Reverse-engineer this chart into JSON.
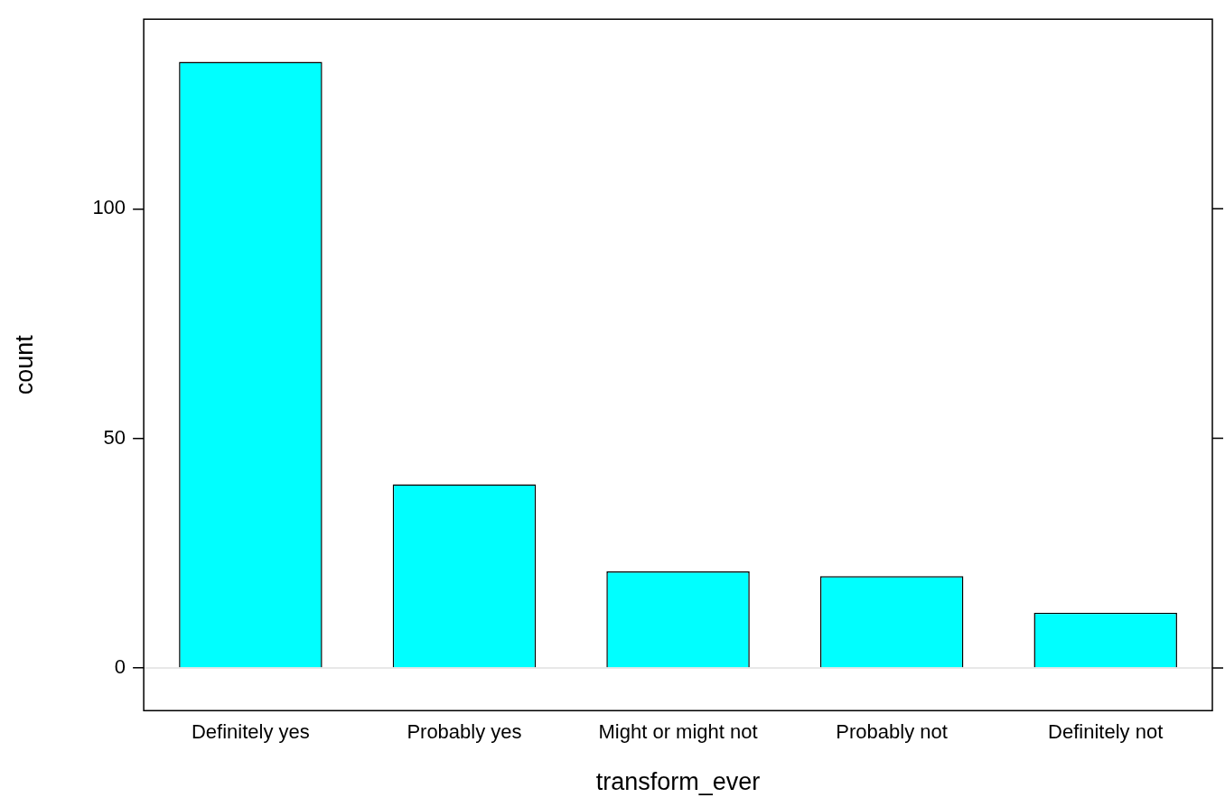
{
  "chart_data": {
    "type": "bar",
    "xlabel": "transform_ever",
    "ylabel": "count",
    "categories": [
      "Definitely yes",
      "Probably yes",
      "Might or might not",
      "Probably not",
      "Definitely not"
    ],
    "values": [
      132,
      40,
      21,
      20,
      12
    ],
    "color": "#00ffff",
    "ylim": [
      -9.3,
      141.3
    ],
    "yticks": [
      0,
      50,
      100
    ],
    "grid": false,
    "ref_lines": [
      {
        "axis": "y",
        "value": 0,
        "color": "#e0e0e0"
      }
    ]
  }
}
